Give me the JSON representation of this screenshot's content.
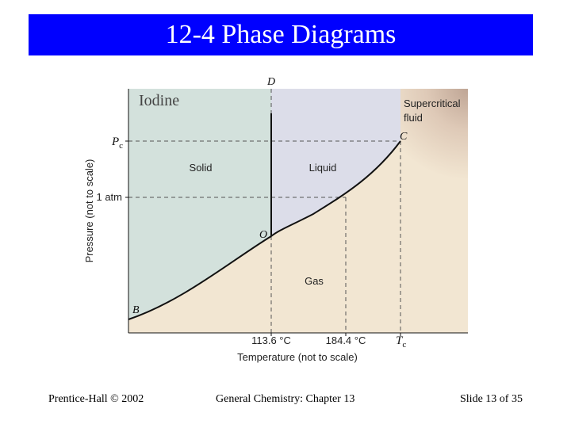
{
  "slide": {
    "title": "12-4 Phase Diagrams"
  },
  "diagram": {
    "substance": "Iodine",
    "regions": {
      "solid": "Solid",
      "liquid": "Liquid",
      "gas": "Gas",
      "supercritical_line1": "Supercritical",
      "supercritical_line2": "fluid"
    },
    "points": {
      "triple": "O",
      "critical": "C",
      "sublimation_start": "B",
      "melting_top": "D"
    },
    "axes": {
      "y_label": "Pressure (not to scale)",
      "x_label": "Temperature (not to scale)",
      "y_tick_pc_main": "P",
      "y_tick_pc_sub": "c",
      "y_tick_atm": "1 atm",
      "x_tick_triple": "113.6 °C",
      "x_tick_boiling": "184.4 °C",
      "x_tick_tc_main": "T",
      "x_tick_tc_sub": "c"
    },
    "colors": {
      "solid": "#d3e1dc",
      "liquid": "#dcdde9",
      "gas": "#f2e6d2",
      "supercritical": "#b99e8e"
    }
  },
  "footer": {
    "left": "Prentice-Hall © 2002",
    "center": "General Chemistry: Chapter 13",
    "right": "Slide 13 of 35"
  }
}
